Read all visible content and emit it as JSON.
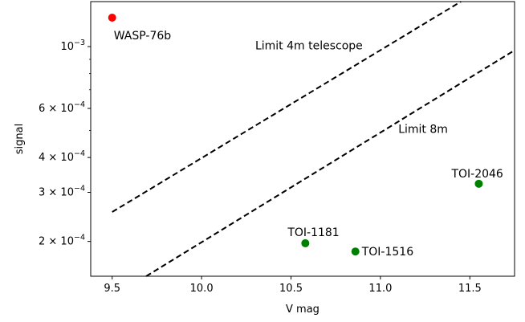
{
  "chart_data": {
    "type": "scatter",
    "title": "",
    "xlabel": "V mag",
    "ylabel": "signal",
    "xlim": [
      9.38,
      11.75
    ],
    "ylim": [
      0.00015,
      0.00145
    ],
    "yscale": "log",
    "grid": false,
    "x_ticks": [
      {
        "value": 9.5,
        "label": "9.5"
      },
      {
        "value": 10.0,
        "label": "10.0"
      },
      {
        "value": 10.5,
        "label": "10.5"
      },
      {
        "value": 11.0,
        "label": "11.0"
      },
      {
        "value": 11.5,
        "label": "11.5"
      }
    ],
    "y_ticks": [
      {
        "value": 0.0002,
        "mant": "2",
        "sep": " × ",
        "base": "10",
        "exp": "−4"
      },
      {
        "value": 0.0003,
        "mant": "3",
        "sep": " × ",
        "base": "10",
        "exp": "−4"
      },
      {
        "value": 0.0004,
        "mant": "4",
        "sep": " × ",
        "base": "10",
        "exp": "−4"
      },
      {
        "value": 0.0006,
        "mant": "6",
        "sep": " × ",
        "base": "10",
        "exp": "−4"
      },
      {
        "value": 0.001,
        "mant": "",
        "sep": "",
        "base": "10",
        "exp": "−3"
      }
    ],
    "y_minor_ticks": [
      0.0005,
      0.0007,
      0.0008,
      0.0009
    ],
    "points": [
      {
        "label": "WASP-76b",
        "x": 9.5,
        "y": 0.00127,
        "color": "#ff0000"
      },
      {
        "label": "TOI-1181",
        "x": 10.58,
        "y": 0.000197,
        "color": "#008000"
      },
      {
        "label": "TOI-1516",
        "x": 10.86,
        "y": 0.000184,
        "color": "#008000"
      },
      {
        "label": "TOI-2046",
        "x": 11.55,
        "y": 0.000322,
        "color": "#008000"
      }
    ],
    "limit_lines": [
      {
        "label": "Limit 4m telescope",
        "x": [
          9.5,
          11.45
        ],
        "y": [
          0.000255,
          0.00145
        ],
        "style": "dashed",
        "color": "#000000"
      },
      {
        "label": "Limit 8m",
        "x": [
          9.69,
          11.75
        ],
        "y": [
          0.00015,
          0.00097
        ],
        "style": "dashed",
        "color": "#000000"
      }
    ]
  }
}
